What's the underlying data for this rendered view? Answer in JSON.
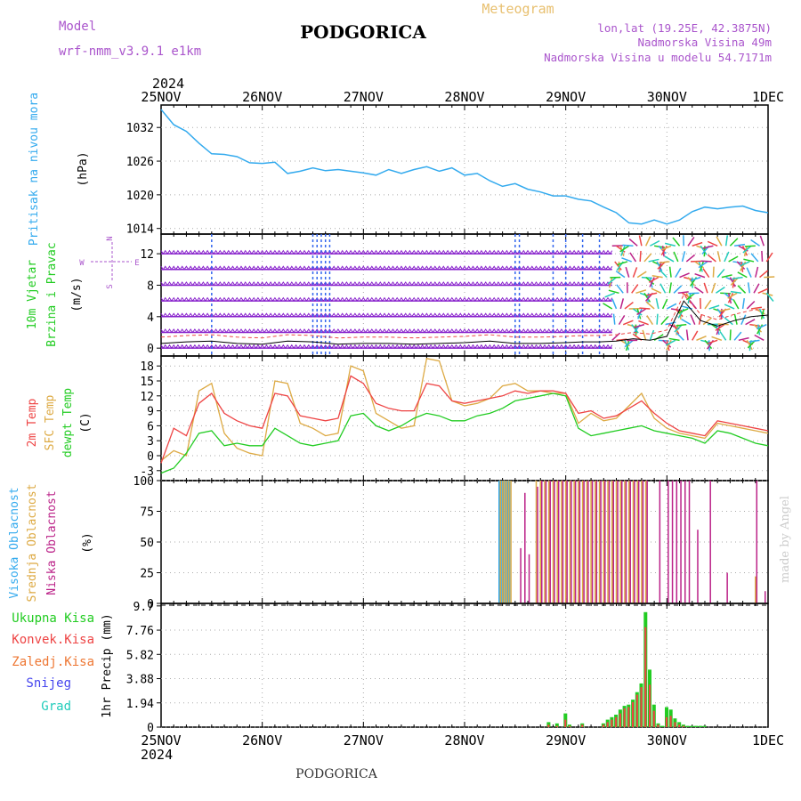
{
  "header": {
    "model_label": "Model",
    "model_name": "wrf-nmm_v3.9.1 e1km",
    "title": "PODGORICA",
    "meteogram_label": "Meteogram",
    "lonlat": "lon,lat (19.25E, 42.3875N)",
    "elevation": "Nadmorska Visina 49m",
    "model_elevation": "Nadmorska Visina u modelu 54.7171m",
    "year_top": "2024",
    "year_bottom": "2024",
    "footer_title": "PODGORICA",
    "credit": "made by Angel"
  },
  "colors": {
    "pressure": "#33aaee",
    "temp2m": "#ee4444",
    "sfc": "#ddaa44",
    "dewpt": "#22cc22",
    "high_cloud": "#33aaee",
    "mid_cloud": "#ddaa44",
    "low_cloud": "#bb2288",
    "total_precip": "#22cc22",
    "conv_precip": "#ee4444",
    "frozen": "#ee7733",
    "snow": "#4444ee",
    "hail": "#22ccbb",
    "wind_flag": "#8822cc",
    "wind_blue": "#3366ee",
    "grid": "#aaaaaa",
    "label_purple": "#aa55cc"
  },
  "time_axis": {
    "labels_top": [
      "25NOV",
      "26NOV",
      "27NOV",
      "28NOV",
      "29NOV",
      "30NOV",
      "1DEC"
    ],
    "labels_bottom": [
      "25NOV",
      "26NOV",
      "27NOV",
      "28NOV",
      "29NOV",
      "30NOV",
      "1DEC"
    ]
  },
  "panels": {
    "pressure": {
      "label": "Pritisak na nivou mora",
      "unit": "(hPa)",
      "yticks": [
        "1014",
        "1020",
        "1026",
        "1032"
      ]
    },
    "wind": {
      "label1": "10m Vjetar",
      "label2": "Brzina i Pravac",
      "unit": "(m/s)",
      "yticks": [
        "0",
        "4",
        "8",
        "12"
      ],
      "compass": [
        "N",
        "S",
        "W",
        "E"
      ]
    },
    "temp": {
      "label1": "2m Temp",
      "label2": "SFC Temp",
      "label3": "dewpt Temp",
      "unit": "(C)",
      "yticks": [
        "-3",
        "0",
        "3",
        "6",
        "9",
        "12",
        "15",
        "18"
      ]
    },
    "cloud": {
      "label1": "Visoka Oblacnost",
      "label2": "Srednja Oblacnost",
      "label3": "Niska Oblacnost",
      "unit": "(%)",
      "yticks": [
        "0",
        "25",
        "50",
        "75",
        "100"
      ]
    },
    "precip": {
      "unit_label": "1hr Precip (mm)",
      "yticks": [
        "0",
        "1.94",
        "3.88",
        "5.82",
        "7.76",
        "9.7"
      ],
      "legend": [
        "Ukupna Kisa",
        "Konvek.Kisa",
        "Zaledj.Kisa",
        "Snijeg",
        "Grad"
      ]
    }
  },
  "chart_data": [
    {
      "type": "line",
      "title": "",
      "ylabel": "Pritisak na nivou mora (hPa)",
      "xlabel": "",
      "ylim": [
        1013,
        1036
      ],
      "x": [
        0,
        3,
        6,
        9,
        12,
        15,
        18,
        21,
        24,
        27,
        30,
        33,
        36,
        39,
        42,
        45,
        48,
        51,
        54,
        57,
        60,
        63,
        66,
        69,
        72,
        75,
        78,
        81,
        84,
        87,
        90,
        93,
        96,
        99,
        102,
        105,
        108,
        111,
        114,
        117,
        120,
        123,
        126,
        129,
        132,
        135,
        138,
        141,
        144
      ],
      "series": [
        {
          "name": "Pritisak na nivou mora",
          "values": [
            1035.2,
            1032.5,
            1031.3,
            1029.2,
            1027.3,
            1027.2,
            1026.8,
            1025.7,
            1025.6,
            1025.8,
            1023.8,
            1024.2,
            1024.8,
            1024.3,
            1024.5,
            1024.2,
            1023.9,
            1023.5,
            1024.5,
            1023.8,
            1024.5,
            1025.0,
            1024.2,
            1024.8,
            1023.5,
            1023.8,
            1022.5,
            1021.5,
            1022.0,
            1021.0,
            1020.5,
            1019.8,
            1019.8,
            1019.2,
            1018.9,
            1017.8,
            1016.8,
            1015.0,
            1014.8,
            1015.5,
            1014.8,
            1015.5,
            1017.0,
            1017.8,
            1017.5,
            1017.8,
            1018.0,
            1017.2,
            1016.8
          ]
        }
      ]
    },
    {
      "type": "line",
      "title": "",
      "ylabel": "10m Vjetar Brzina i Pravac (m/s)",
      "xlabel": "",
      "ylim": [
        -1,
        14.5
      ],
      "x": [
        0,
        6,
        12,
        18,
        24,
        30,
        36,
        42,
        48,
        54,
        60,
        66,
        72,
        78,
        84,
        90,
        96,
        100,
        104,
        108,
        112,
        116,
        120,
        124,
        128,
        132,
        136,
        140,
        144
      ],
      "series": [
        {
          "name": "10m Vjetar",
          "values": [
            0.6,
            0.8,
            0.9,
            0.6,
            0.5,
            0.9,
            0.8,
            0.5,
            0.6,
            0.6,
            0.5,
            0.6,
            0.7,
            0.9,
            0.6,
            0.6,
            0.7,
            0.8,
            0.8,
            0.9,
            1.2,
            1.0,
            1.5,
            6.0,
            3.5,
            2.8,
            3.5,
            4.0,
            4.2
          ]
        }
      ]
    },
    {
      "type": "line",
      "title": "",
      "ylabel": "Temp (C)",
      "xlabel": "",
      "ylim": [
        -5,
        20
      ],
      "x": [
        0,
        3,
        6,
        9,
        12,
        15,
        18,
        21,
        24,
        27,
        30,
        33,
        36,
        39,
        42,
        45,
        48,
        51,
        54,
        57,
        60,
        63,
        66,
        69,
        72,
        75,
        78,
        81,
        84,
        87,
        90,
        93,
        96,
        99,
        102,
        105,
        108,
        111,
        114,
        117,
        120,
        123,
        126,
        129,
        132,
        135,
        138,
        141,
        144
      ],
      "series": [
        {
          "name": "2m Temp",
          "values": [
            -1.5,
            5.5,
            4.0,
            10.5,
            12.5,
            8.5,
            7.0,
            6.0,
            5.5,
            12.5,
            12.0,
            8.0,
            7.5,
            7.0,
            7.5,
            16.0,
            14.5,
            10.5,
            9.5,
            9.0,
            9.0,
            14.5,
            14.0,
            11.0,
            10.5,
            11.0,
            11.5,
            12.0,
            13.0,
            12.5,
            13.0,
            13.0,
            12.5,
            8.5,
            9.0,
            7.5,
            8.0,
            9.5,
            11.0,
            8.5,
            6.5,
            5.0,
            4.5,
            4.0,
            7.0,
            6.5,
            6.0,
            5.5,
            5.0
          ]
        },
        {
          "name": "SFC Temp",
          "values": [
            -1.0,
            1.0,
            0.0,
            13.0,
            14.5,
            4.5,
            1.5,
            0.5,
            0.0,
            15.0,
            14.5,
            6.5,
            5.5,
            4.0,
            4.5,
            18.0,
            17.0,
            8.5,
            7.0,
            5.5,
            6.0,
            19.5,
            19.0,
            11.0,
            10.0,
            10.5,
            11.5,
            14.0,
            14.5,
            13.0,
            13.0,
            12.5,
            12.5,
            6.5,
            8.5,
            7.0,
            7.5,
            10.0,
            12.5,
            7.5,
            5.5,
            4.5,
            4.0,
            3.5,
            6.5,
            6.0,
            5.5,
            5.0,
            4.5
          ]
        },
        {
          "name": "dewpt Temp",
          "values": [
            -3.5,
            -2.5,
            0.5,
            4.5,
            5.0,
            2.0,
            2.5,
            2.0,
            2.0,
            5.5,
            4.0,
            2.5,
            2.0,
            2.5,
            3.0,
            8.0,
            8.5,
            6.0,
            5.0,
            6.0,
            7.5,
            8.5,
            8.0,
            7.0,
            7.0,
            8.0,
            8.5,
            9.5,
            11.0,
            11.5,
            12.0,
            12.5,
            12.0,
            5.5,
            4.0,
            4.5,
            5.0,
            5.5,
            6.0,
            5.0,
            4.5,
            4.0,
            3.5,
            2.5,
            5.0,
            4.5,
            3.5,
            2.5,
            2.0
          ]
        }
      ]
    },
    {
      "type": "bar",
      "title": "",
      "ylabel": "Oblacnost (%)",
      "xlabel": "",
      "ylim": [
        0,
        100
      ],
      "x": [
        80.5,
        81,
        81.5,
        82,
        82.5,
        83,
        85,
        86,
        87,
        89,
        90,
        91,
        92,
        93,
        94,
        95,
        96,
        97,
        98,
        99,
        100,
        101,
        102,
        103,
        104,
        105,
        106,
        107,
        108,
        109,
        110,
        111,
        112,
        113,
        114,
        115,
        118,
        120,
        121,
        122,
        123,
        124,
        125,
        127,
        130,
        134,
        141,
        143
      ],
      "series": [
        {
          "name": "Visoka Oblacnost",
          "values": [
            100,
            100,
            100,
            100,
            100,
            100,
            0,
            0,
            0,
            0,
            0,
            0,
            0,
            0,
            0,
            0,
            0,
            0,
            0,
            0,
            0,
            0,
            0,
            0,
            0,
            0,
            0,
            0,
            0,
            0,
            0,
            0,
            0,
            0,
            0,
            0,
            0,
            0,
            0,
            0,
            0,
            0,
            0,
            0,
            0,
            0,
            0,
            0
          ]
        },
        {
          "name": "Srednja Oblacnost",
          "values": [
            100,
            100,
            100,
            100,
            100,
            100,
            0,
            0,
            0,
            100,
            100,
            100,
            100,
            100,
            100,
            100,
            100,
            100,
            100,
            100,
            100,
            100,
            100,
            100,
            100,
            100,
            100,
            100,
            100,
            100,
            100,
            100,
            100,
            100,
            100,
            100,
            0,
            0,
            0,
            0,
            0,
            0,
            0,
            0,
            0,
            0,
            22,
            0
          ]
        },
        {
          "name": "Niska Oblacnost",
          "values": [
            0,
            0,
            0,
            0,
            0,
            0,
            45,
            90,
            40,
            95,
            100,
            100,
            100,
            100,
            100,
            100,
            100,
            100,
            100,
            100,
            100,
            100,
            100,
            100,
            100,
            100,
            100,
            100,
            100,
            100,
            100,
            100,
            100,
            100,
            100,
            100,
            100,
            100,
            100,
            100,
            100,
            100,
            100,
            60,
            100,
            25,
            100,
            10
          ]
        }
      ]
    },
    {
      "type": "bar",
      "title": "",
      "ylabel": "1hr Precip (mm)",
      "xlabel": "",
      "ylim": [
        0,
        9.7
      ],
      "x": [
        92,
        94,
        96,
        97,
        100,
        105,
        106,
        107,
        108,
        109,
        110,
        111,
        112,
        113,
        114,
        115,
        116,
        117,
        118,
        119,
        120,
        121,
        122,
        123,
        124,
        125,
        126,
        127,
        128,
        129
      ],
      "series": [
        {
          "name": "Ukupna Kisa",
          "values": [
            0.4,
            0.3,
            1.1,
            0.2,
            0.3,
            0.3,
            0.6,
            0.8,
            1.0,
            1.4,
            1.7,
            1.8,
            2.2,
            2.8,
            3.5,
            9.2,
            4.6,
            1.8,
            0.3,
            0.1,
            1.6,
            1.4,
            0.7,
            0.4,
            0.2,
            0.1,
            0.1,
            0.1,
            0.1,
            0.1
          ]
        },
        {
          "name": "Konvek.Kisa",
          "values": [
            0.2,
            0.1,
            0.6,
            0.1,
            0.2,
            0.2,
            0.4,
            0.6,
            0.8,
            1.1,
            1.5,
            1.6,
            2.0,
            2.6,
            3.2,
            8.0,
            3.4,
            1.3,
            0.2,
            0.0,
            0.8,
            0.9,
            0.4,
            0.2,
            0.1,
            0.0,
            0.0,
            0.0,
            0.0,
            0.0
          ]
        }
      ]
    }
  ]
}
